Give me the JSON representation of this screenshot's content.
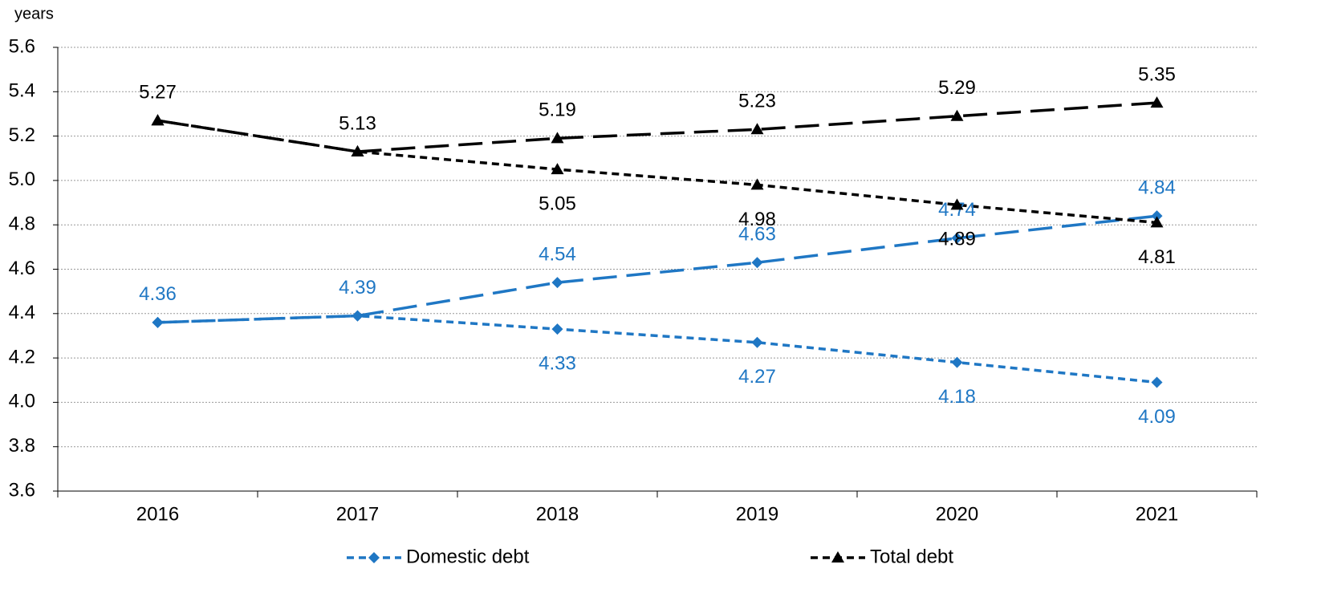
{
  "chart_data": {
    "type": "line",
    "y_axis_label": "years",
    "categories": [
      "2016",
      "2017",
      "2018",
      "2019",
      "2020",
      "2021"
    ],
    "series": [
      {
        "name": "Domestic debt",
        "color": "#1f77c4",
        "marker": "diamond",
        "dash": "short",
        "values": [
          4.36,
          4.39,
          4.33,
          4.27,
          4.18,
          4.09
        ]
      },
      {
        "color": "#1f77c4",
        "marker": "diamond",
        "dash": "long",
        "values": [
          4.36,
          4.39,
          4.54,
          4.63,
          4.74,
          4.84
        ]
      },
      {
        "name": "Total debt",
        "color": "#000000",
        "marker": "triangle",
        "dash": "short",
        "values": [
          5.27,
          5.13,
          5.05,
          4.98,
          4.89,
          4.81
        ]
      },
      {
        "color": "#000000",
        "marker": "triangle",
        "dash": "long",
        "values": [
          5.27,
          5.13,
          5.19,
          5.23,
          5.29,
          5.35
        ]
      }
    ],
    "ylim": [
      3.6,
      5.6
    ],
    "yticks": [
      3.6,
      3.8,
      4.0,
      4.2,
      4.4,
      4.6,
      4.8,
      5.0,
      5.2,
      5.4,
      5.6
    ],
    "grid": true,
    "legend": "bottom"
  }
}
